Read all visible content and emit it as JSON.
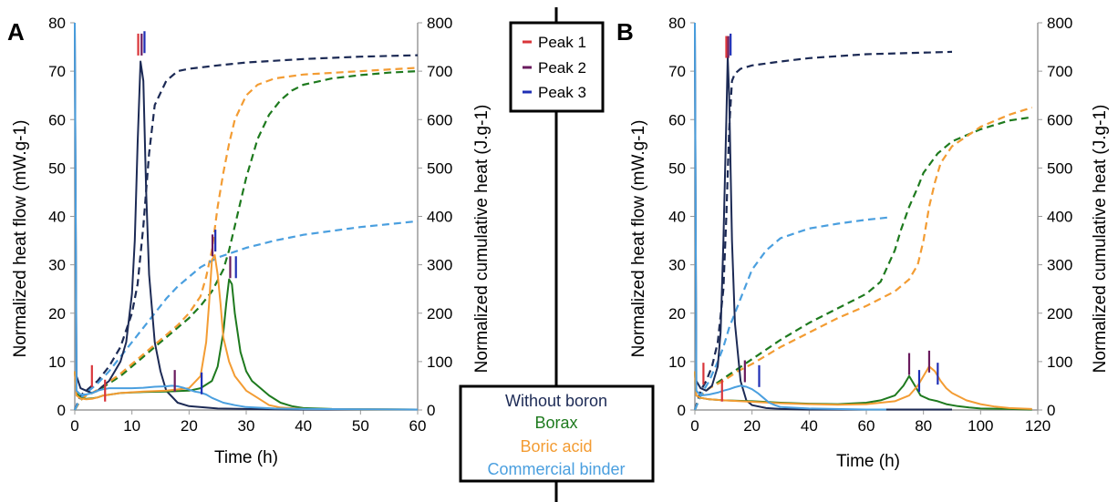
{
  "chart_data": [
    {
      "panel": "A",
      "type": "line",
      "xlabel": "Time (h)",
      "ylabel": "Normalized heat flow (mW.g-1)",
      "y2label": "Normalized cumulative heat (J.g-1)",
      "xlim": [
        0,
        60
      ],
      "xticks": [
        0,
        10,
        20,
        30,
        40,
        50,
        60
      ],
      "ylim": [
        0,
        80
      ],
      "yticks": [
        0,
        10,
        20,
        30,
        40,
        50,
        60,
        70,
        80
      ],
      "y2lim": [
        0,
        800
      ],
      "y2ticks": [
        0,
        100,
        200,
        300,
        400,
        500,
        600,
        700,
        800
      ],
      "series": [
        {
          "name": "Without boron",
          "axis": "left",
          "style": "solid",
          "color": "#1c2a55",
          "x": [
            0,
            0.3,
            1,
            2,
            3,
            4,
            5,
            6,
            7,
            8,
            9,
            10,
            10.5,
            11,
            11.5,
            12,
            12.5,
            13,
            14,
            15,
            16,
            18,
            20,
            25,
            30,
            40,
            60
          ],
          "y": [
            80,
            7,
            4.5,
            4,
            3.5,
            4,
            5,
            6,
            8,
            10,
            14,
            24,
            35,
            55,
            72,
            68,
            45,
            28,
            14,
            8,
            4,
            1.5,
            0.8,
            0.3,
            0.2,
            0.1,
            0.1
          ]
        },
        {
          "name": "Borax",
          "axis": "left",
          "style": "solid",
          "color": "#1e7a1e",
          "x": [
            0,
            0.3,
            1,
            2,
            3,
            4,
            5,
            8,
            12,
            16,
            20,
            22,
            24,
            25,
            26,
            26.5,
            27,
            27.5,
            28,
            29,
            30,
            31,
            32,
            34,
            36,
            38,
            40,
            45,
            60
          ],
          "y": [
            8,
            3.5,
            2.5,
            2.3,
            2.4,
            2.6,
            3,
            3.5,
            3.7,
            3.8,
            4,
            4.5,
            6,
            9,
            16,
            22,
            27,
            26,
            20,
            12,
            8,
            6,
            5,
            3,
            1.5,
            0.8,
            0.4,
            0.2,
            0.1
          ]
        },
        {
          "name": "Boric acid",
          "axis": "left",
          "style": "solid",
          "color": "#f39c33",
          "x": [
            0,
            0.3,
            1,
            2,
            3,
            4,
            5,
            8,
            12,
            16,
            20,
            22,
            23,
            23.5,
            24,
            24.5,
            25,
            25.5,
            26,
            27,
            28,
            30,
            32,
            34,
            36,
            40,
            60
          ],
          "y": [
            8,
            3,
            2.4,
            2.2,
            2.3,
            2.6,
            3,
            3.5,
            3.8,
            4,
            4.5,
            7,
            14,
            22,
            31,
            32,
            28,
            22,
            15,
            10,
            7,
            4,
            2.5,
            1,
            0.5,
            0.2,
            0.1
          ]
        },
        {
          "name": "Commercial binder",
          "axis": "left",
          "style": "solid",
          "color": "#4a9fdf",
          "x": [
            0,
            0.3,
            1,
            2,
            3,
            4,
            5,
            6,
            8,
            10,
            12,
            14,
            16,
            17,
            18,
            19,
            20,
            21,
            22,
            23,
            24,
            26,
            28,
            30,
            35,
            40,
            60
          ],
          "y": [
            80,
            4,
            3.2,
            3.2,
            3.5,
            4,
            4.3,
            4.5,
            4.5,
            4.5,
            4.6,
            4.8,
            4.9,
            5,
            4.9,
            4.6,
            4.2,
            3.8,
            3.6,
            3.2,
            2.5,
            1.5,
            1,
            0.6,
            0.3,
            0.2,
            0.1
          ]
        },
        {
          "name": "Without boron",
          "axis": "right",
          "style": "dashed",
          "color": "#1c2a55",
          "x": [
            0,
            1,
            2,
            3,
            4,
            6,
            8,
            10,
            11,
            12,
            13,
            14,
            16,
            18,
            20,
            25,
            30,
            40,
            50,
            60
          ],
          "y": [
            0,
            30,
            40,
            50,
            60,
            90,
            130,
            200,
            260,
            380,
            530,
            630,
            680,
            700,
            705,
            712,
            718,
            725,
            730,
            733
          ]
        },
        {
          "name": "Borax",
          "axis": "right",
          "style": "dashed",
          "color": "#1e7a1e",
          "x": [
            0,
            1,
            2,
            3,
            4,
            6,
            8,
            10,
            12,
            14,
            16,
            18,
            20,
            22,
            24,
            26,
            27,
            28,
            29,
            30,
            32,
            34,
            36,
            38,
            40,
            45,
            50,
            55,
            60
          ],
          "y": [
            0,
            20,
            30,
            35,
            40,
            55,
            70,
            90,
            110,
            130,
            150,
            170,
            190,
            215,
            245,
            290,
            330,
            380,
            430,
            480,
            560,
            610,
            640,
            660,
            672,
            685,
            692,
            697,
            700
          ]
        },
        {
          "name": "Boric acid",
          "axis": "right",
          "style": "dashed",
          "color": "#f39c33",
          "x": [
            0,
            1,
            2,
            3,
            4,
            6,
            8,
            10,
            12,
            14,
            16,
            18,
            20,
            22,
            23,
            24,
            25,
            26,
            27,
            28,
            30,
            32,
            35,
            40,
            50,
            60
          ],
          "y": [
            0,
            20,
            30,
            35,
            42,
            58,
            75,
            95,
            115,
            135,
            155,
            175,
            200,
            235,
            275,
            330,
            420,
            490,
            550,
            600,
            650,
            672,
            685,
            693,
            700,
            707
          ]
        },
        {
          "name": "Commercial binder",
          "axis": "right",
          "style": "dashed",
          "color": "#4a9fdf",
          "x": [
            0,
            1,
            2,
            3,
            4,
            6,
            8,
            10,
            12,
            14,
            16,
            18,
            20,
            22,
            25,
            30,
            35,
            40,
            50,
            60
          ],
          "y": [
            0,
            25,
            35,
            45,
            55,
            80,
            110,
            140,
            170,
            200,
            230,
            255,
            275,
            295,
            315,
            335,
            350,
            362,
            378,
            390
          ]
        }
      ],
      "peak_markers": [
        {
          "peak": "Peak 1",
          "x": 3,
          "y": 7
        },
        {
          "peak": "Peak 1",
          "x": 5.3,
          "y": 4
        },
        {
          "peak": "Peak 1",
          "x": 11.1,
          "y": 75.5
        },
        {
          "peak": "Peak 2",
          "x": 11.7,
          "y": 75.5
        },
        {
          "peak": "Peak 2",
          "x": 17.5,
          "y": 6
        },
        {
          "peak": "Peak 2",
          "x": 24.1,
          "y": 34
        },
        {
          "peak": "Peak 3",
          "x": 12.2,
          "y": 76
        },
        {
          "peak": "Peak 3",
          "x": 22.2,
          "y": 5.5
        },
        {
          "peak": "Peak 3",
          "x": 24.6,
          "y": 35
        },
        {
          "peak": "Peak 2",
          "x": 27.2,
          "y": 29.5
        },
        {
          "peak": "Peak 3",
          "x": 28.2,
          "y": 29.5
        }
      ]
    },
    {
      "panel": "B",
      "type": "line",
      "xlabel": "Time (h)",
      "ylabel": "Normalized heat flow (mW.g-1)",
      "y2label": "Normalized cumulative heat (J.g-1)",
      "xlim": [
        0,
        120
      ],
      "xticks": [
        0,
        20,
        40,
        60,
        80,
        100,
        120
      ],
      "ylim": [
        0,
        80
      ],
      "yticks": [
        0,
        10,
        20,
        30,
        40,
        50,
        60,
        70,
        80
      ],
      "y2lim": [
        0,
        800
      ],
      "y2ticks": [
        0,
        100,
        200,
        300,
        400,
        500,
        600,
        700,
        800
      ],
      "series": [
        {
          "name": "Without boron",
          "axis": "left",
          "style": "solid",
          "color": "#1c2a55",
          "x": [
            0,
            0.5,
            2,
            4,
            6,
            8,
            9,
            10,
            11,
            11.5,
            12,
            13,
            14,
            16,
            18,
            20,
            25,
            30,
            40,
            60,
            90
          ],
          "y": [
            80,
            6,
            4.5,
            4,
            5,
            9,
            16,
            35,
            60,
            73,
            65,
            35,
            18,
            6,
            2,
            1,
            0.4,
            0.2,
            0.1,
            0.1,
            0.1
          ]
        },
        {
          "name": "Borax",
          "axis": "left",
          "style": "solid",
          "color": "#1e7a1e",
          "x": [
            0,
            0.5,
            2,
            5,
            10,
            20,
            30,
            40,
            50,
            60,
            65,
            70,
            73,
            75,
            77,
            79,
            82,
            85,
            88,
            92,
            96,
            100,
            110,
            118
          ],
          "y": [
            8,
            3,
            2.5,
            2.2,
            2,
            1.8,
            1.5,
            1.3,
            1.2,
            1.5,
            2,
            3,
            5,
            7,
            5,
            3,
            2.2,
            1.8,
            1.2,
            0.8,
            0.5,
            0.3,
            0.2,
            0.1
          ]
        },
        {
          "name": "Boric acid",
          "axis": "left",
          "style": "solid",
          "color": "#f39c33",
          "x": [
            0,
            0.5,
            2,
            5,
            10,
            20,
            30,
            40,
            50,
            60,
            70,
            75,
            78,
            80,
            82,
            84,
            86,
            88,
            90,
            95,
            100,
            105,
            110,
            118
          ],
          "y": [
            8,
            3,
            2.5,
            2.2,
            2,
            1.7,
            1.4,
            1.2,
            1.1,
            1.2,
            1.8,
            3,
            5,
            7,
            9,
            8,
            6,
            4.5,
            3.5,
            2,
            1.2,
            0.7,
            0.4,
            0.2
          ]
        },
        {
          "name": "Commercial binder",
          "axis": "left",
          "style": "solid",
          "color": "#4a9fdf",
          "x": [
            0,
            0.5,
            2,
            5,
            8,
            10,
            12,
            14,
            16,
            18,
            20,
            22,
            24,
            26,
            28,
            30,
            40,
            60,
            67
          ],
          "y": [
            80,
            4,
            3,
            3.2,
            3.6,
            4,
            4.3,
            4.7,
            5,
            4.8,
            4.3,
            3.5,
            2.5,
            1.5,
            1,
            0.6,
            0.3,
            0.1,
            0.1
          ]
        },
        {
          "name": "Without boron",
          "axis": "right",
          "style": "dashed",
          "color": "#1c2a55",
          "x": [
            0,
            2,
            4,
            6,
            8,
            10,
            11,
            12,
            13,
            14,
            16,
            20,
            30,
            40,
            60,
            90
          ],
          "y": [
            0,
            40,
            60,
            90,
            140,
            250,
            400,
            580,
            680,
            695,
            705,
            712,
            720,
            727,
            735,
            740
          ]
        },
        {
          "name": "Borax",
          "axis": "right",
          "style": "dashed",
          "color": "#1e7a1e",
          "x": [
            0,
            2,
            5,
            10,
            15,
            20,
            30,
            40,
            50,
            60,
            65,
            70,
            72,
            75,
            78,
            80,
            85,
            90,
            100,
            110,
            118
          ],
          "y": [
            0,
            30,
            45,
            65,
            85,
            105,
            145,
            180,
            210,
            240,
            265,
            330,
            370,
            420,
            460,
            490,
            530,
            555,
            580,
            598,
            605
          ]
        },
        {
          "name": "Boric acid",
          "axis": "right",
          "style": "dashed",
          "color": "#f39c33",
          "x": [
            0,
            2,
            5,
            10,
            15,
            20,
            30,
            40,
            50,
            60,
            70,
            75,
            78,
            80,
            82,
            84,
            86,
            90,
            100,
            110,
            118
          ],
          "y": [
            0,
            30,
            45,
            60,
            80,
            95,
            130,
            160,
            190,
            215,
            245,
            270,
            300,
            350,
            420,
            470,
            510,
            545,
            585,
            610,
            625
          ]
        },
        {
          "name": "Commercial binder",
          "axis": "right",
          "style": "dashed",
          "color": "#4a9fdf",
          "x": [
            0,
            2,
            5,
            8,
            10,
            12,
            14,
            16,
            18,
            20,
            25,
            30,
            40,
            50,
            60,
            68
          ],
          "y": [
            0,
            30,
            60,
            100,
            130,
            170,
            200,
            230,
            260,
            290,
            330,
            355,
            375,
            385,
            393,
            398
          ]
        }
      ],
      "peak_markers": [
        {
          "peak": "Peak 1",
          "x": 3,
          "y": 7.5
        },
        {
          "peak": "Peak 1",
          "x": 9.5,
          "y": 4
        },
        {
          "peak": "Peak 1",
          "x": 11,
          "y": 75
        },
        {
          "peak": "Peak 2",
          "x": 11.7,
          "y": 75
        },
        {
          "peak": "Peak 2",
          "x": 17.5,
          "y": 8
        },
        {
          "peak": "Peak 3",
          "x": 12.5,
          "y": 75.5
        },
        {
          "peak": "Peak 3",
          "x": 22.5,
          "y": 7
        },
        {
          "peak": "Peak 2",
          "x": 75,
          "y": 9.5
        },
        {
          "peak": "Peak 3",
          "x": 78.5,
          "y": 6
        },
        {
          "peak": "Peak 2",
          "x": 82,
          "y": 10
        },
        {
          "peak": "Peak 3",
          "x": 85,
          "y": 7.5
        }
      ]
    }
  ],
  "panel_labels": {
    "a": "A",
    "b": "B"
  },
  "peak_legend": [
    {
      "label": "Peak 1",
      "color": "#d9353a"
    },
    {
      "label": "Peak 2",
      "color": "#6a1b5e"
    },
    {
      "label": "Peak 3",
      "color": "#1f2fb5"
    }
  ],
  "series_legend": [
    {
      "label": "Without boron",
      "color": "#1c2a55"
    },
    {
      "label": "Borax",
      "color": "#1e7a1e"
    },
    {
      "label": "Boric acid",
      "color": "#f39c33"
    },
    {
      "label": "Commercial binder",
      "color": "#4a9fdf"
    }
  ]
}
